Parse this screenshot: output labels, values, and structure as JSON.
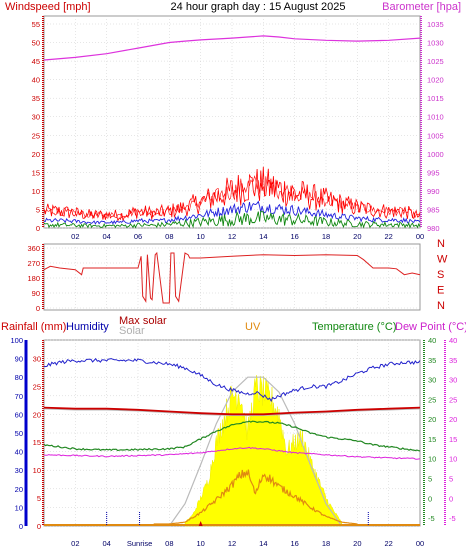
{
  "title": "24 hour graph day : 15 August 2025",
  "colors": {
    "wind_axis": "#cc0000",
    "baro_axis": "#cc33cc",
    "wind_gust": "#ff0000",
    "wind_avg": "#2222dd",
    "wind_low": "#118811",
    "baro_line": "#dd33dd",
    "dir_line": "#dd2222",
    "rain_axis": "#0000cc",
    "rain_line": "#cc0000",
    "humidity": "#2222cc",
    "solar": "#bbbbbb",
    "solar_fill": "#ffff00",
    "uv": "#e08a10",
    "temp": "#228822",
    "dew": "#dd22dd",
    "grid": "#cccccc"
  },
  "chart_data": [
    {
      "type": "line",
      "title": "24 hour graph day : 15 August 2025",
      "ylabel_left": "Windspeed [mph]",
      "ylabel_right": "Barometer [hpa]",
      "xticks": [
        "02",
        "04",
        "06",
        "08",
        "10",
        "12",
        "14",
        "16",
        "18",
        "20",
        "22",
        "00"
      ],
      "yticks_left": [
        "0",
        "5",
        "10",
        "15",
        "20",
        "25",
        "30",
        "35",
        "40",
        "45",
        "50",
        "55"
      ],
      "yticks_right": [
        "980",
        "985",
        "990",
        "995",
        "1000",
        "1005",
        "1010",
        "1015",
        "1020",
        "1025",
        "1030",
        "1035"
      ],
      "ylim_left": [
        0,
        55
      ],
      "ylim_right": [
        980,
        1035
      ],
      "series": [
        {
          "axis": "right",
          "x": [
            0,
            2,
            4,
            6,
            8,
            9,
            10,
            12,
            13,
            14,
            15,
            16,
            18,
            20,
            22,
            24
          ],
          "values": [
            1025.3,
            1026.0,
            1027.0,
            1028.5,
            1030.0,
            1030.4,
            1030.7,
            1031.2,
            1031.5,
            1031.8,
            1031.5,
            1031.0,
            1030.6,
            1030.4,
            1030.6,
            1031.2
          ]
        },
        {
          "axis": "left",
          "x": [
            0,
            1,
            2,
            3,
            4,
            5,
            6,
            7,
            8,
            9,
            10,
            11,
            12,
            13,
            14,
            15,
            16,
            17,
            18,
            19,
            20,
            21,
            22,
            23,
            24
          ],
          "values": [
            4.5,
            4.5,
            4.0,
            3.5,
            3.5,
            3.5,
            4.5,
            4.0,
            4.5,
            5.5,
            7.0,
            8.5,
            10.0,
            11.5,
            11.5,
            10.5,
            9.5,
            8.5,
            7.5,
            6.5,
            5.5,
            5.0,
            4.5,
            4.5,
            3.0
          ]
        },
        {
          "axis": "left",
          "x": [
            0,
            1,
            2,
            3,
            4,
            5,
            6,
            7,
            8,
            9,
            10,
            11,
            12,
            13,
            14,
            15,
            16,
            17,
            18,
            19,
            20,
            21,
            22,
            23,
            24
          ],
          "values": [
            2.0,
            2.0,
            1.8,
            1.5,
            1.5,
            1.5,
            2.0,
            1.8,
            2.2,
            2.8,
            3.5,
            4.3,
            5.0,
            5.8,
            5.8,
            5.2,
            4.8,
            4.2,
            3.6,
            3.0,
            2.6,
            2.3,
            2.2,
            2.1,
            1.5
          ]
        },
        {
          "axis": "left",
          "x": [
            0,
            1,
            2,
            3,
            4,
            5,
            6,
            7,
            8,
            9,
            10,
            11,
            12,
            13,
            14,
            15,
            16,
            17,
            18,
            19,
            20,
            21,
            22,
            23,
            24
          ],
          "values": [
            0.8,
            0.8,
            0.7,
            0.6,
            0.6,
            0.6,
            0.8,
            0.7,
            1.0,
            1.3,
            1.6,
            2.0,
            2.3,
            2.6,
            2.6,
            2.4,
            2.2,
            1.9,
            1.6,
            1.3,
            1.1,
            1.0,
            0.9,
            0.9,
            0.6
          ]
        }
      ]
    },
    {
      "type": "line",
      "title": "",
      "ylabel_right": [
        "N",
        "W",
        "S",
        "E",
        "N"
      ],
      "yticks_left": [
        "0",
        "90",
        "180",
        "270",
        "360"
      ],
      "ylim": [
        0,
        360
      ],
      "series": [
        {
          "x": [
            0,
            0.4,
            1.0,
            2.0,
            2.4,
            2.5,
            3.5,
            4.0,
            5.0,
            6.0,
            6.2,
            6.3,
            6.5,
            6.6,
            6.8,
            6.9,
            7.1,
            7.2,
            7.6,
            8.0,
            8.1,
            8.3,
            8.4,
            8.6,
            9.0,
            9.2,
            9.3,
            10.0,
            12.0,
            14.0,
            16.0,
            18.0,
            20.0,
            20.4,
            21.0,
            22.0,
            22.5,
            23.0,
            23.5,
            24.0
          ],
          "values": [
            230,
            250,
            240,
            230,
            200,
            240,
            240,
            240,
            240,
            240,
            310,
            70,
            40,
            320,
            60,
            50,
            320,
            330,
            30,
            30,
            330,
            330,
            70,
            40,
            330,
            320,
            300,
            300,
            310,
            320,
            315,
            320,
            315,
            290,
            240,
            240,
            235,
            200,
            210,
            200
          ]
        }
      ]
    },
    {
      "type": "line",
      "title": "",
      "legend": [
        "Rainfall (mm)",
        "Humidity",
        "Max solar",
        "Solar",
        "UV",
        "Temperature (°C)",
        "Dew Point (°C)"
      ],
      "yticks_humidity": [
        "0",
        "10",
        "20",
        "30",
        "40",
        "50",
        "60",
        "70",
        "80",
        "90",
        "100"
      ],
      "yticks_rain": [
        "0",
        "5",
        "10",
        "15",
        "20",
        "25",
        "30"
      ],
      "yticks_temp": [
        "-5",
        "0",
        "5",
        "10",
        "15",
        "20",
        "25",
        "30",
        "35",
        "40"
      ],
      "xticks": [
        "02",
        "04",
        "06",
        "08",
        "10",
        "12",
        "14",
        "16",
        "18",
        "20",
        "22",
        "00"
      ],
      "sunrise_label": "Sunrise",
      "series": [
        {
          "name": "Humidity",
          "x": [
            0,
            1,
            2,
            4,
            6,
            8,
            9,
            10,
            11,
            12,
            12.5,
            13,
            13.5,
            14,
            14.5,
            15,
            16,
            17,
            18,
            19,
            20,
            21,
            22,
            23,
            24
          ],
          "values": [
            86,
            88,
            89,
            89,
            89,
            87,
            85,
            81,
            76,
            73,
            72,
            71,
            72,
            70,
            68,
            70,
            73,
            75,
            75,
            78,
            82,
            85,
            87,
            88,
            88
          ]
        },
        {
          "name": "Rainfall (mm)",
          "x": [
            0,
            2,
            4,
            6,
            8,
            10,
            12,
            14,
            16,
            18,
            20,
            22,
            24
          ],
          "values": [
            21.2,
            21.0,
            21.0,
            20.8,
            20.5,
            20.2,
            20.0,
            20.0,
            20.3,
            20.5,
            20.8,
            21.0,
            21.2
          ]
        },
        {
          "name": "Max solar",
          "x": [
            4,
            5,
            6,
            7,
            8,
            9,
            10,
            11,
            12,
            13,
            14,
            15,
            16,
            17,
            18,
            19,
            20,
            21
          ],
          "values": [
            0,
            0,
            0,
            0,
            0,
            12,
            33,
            55,
            72,
            80,
            80,
            72,
            55,
            33,
            12,
            0,
            0,
            0
          ]
        },
        {
          "name": "Solar",
          "x": [
            9.0,
            9.5,
            10.0,
            10.5,
            11.0,
            11.5,
            12.0,
            12.5,
            13.0,
            13.5,
            14.0,
            14.5,
            15.0,
            15.5,
            16.0,
            16.5,
            17.0,
            17.5,
            18.0,
            18.5,
            19.0
          ],
          "values": [
            2,
            6,
            15,
            25,
            45,
            58,
            70,
            72,
            50,
            74,
            72,
            68,
            60,
            40,
            45,
            48,
            35,
            25,
            15,
            8,
            2
          ]
        },
        {
          "name": "UV",
          "x": [
            7,
            8,
            9,
            10,
            11,
            12,
            12.5,
            13,
            13.5,
            14,
            14.5,
            15,
            16,
            17,
            18,
            19,
            20
          ],
          "values": [
            0,
            0,
            0.1,
            0.6,
            1.3,
            2.1,
            2.6,
            2.8,
            1.6,
            2.7,
            2.4,
            2.0,
            1.5,
            0.9,
            0.4,
            0.1,
            0
          ]
        },
        {
          "name": "Temperature (°C)",
          "x": [
            0,
            1,
            2,
            4,
            6,
            8,
            9,
            10,
            11,
            12,
            12.5,
            13,
            14,
            15,
            16,
            17,
            18,
            19,
            20,
            21,
            22,
            23,
            24
          ],
          "values": [
            13.5,
            13.0,
            12.5,
            12.2,
            12.3,
            12.5,
            13.0,
            15.0,
            17.0,
            18.5,
            19.0,
            19.5,
            19.3,
            19.0,
            18.0,
            16.5,
            15.5,
            15.0,
            14.5,
            13.5,
            13.0,
            12.5,
            12.0
          ]
        },
        {
          "name": "Dew Point (°C)",
          "x": [
            0,
            2,
            4,
            6,
            8,
            10,
            11,
            12,
            13,
            14,
            15,
            16,
            18,
            20,
            22,
            24
          ],
          "values": [
            11.0,
            10.8,
            10.6,
            10.8,
            11.0,
            11.5,
            12.0,
            12.5,
            12.8,
            12.5,
            12.0,
            11.5,
            11.0,
            10.5,
            10.2,
            10.0
          ]
        }
      ]
    }
  ]
}
